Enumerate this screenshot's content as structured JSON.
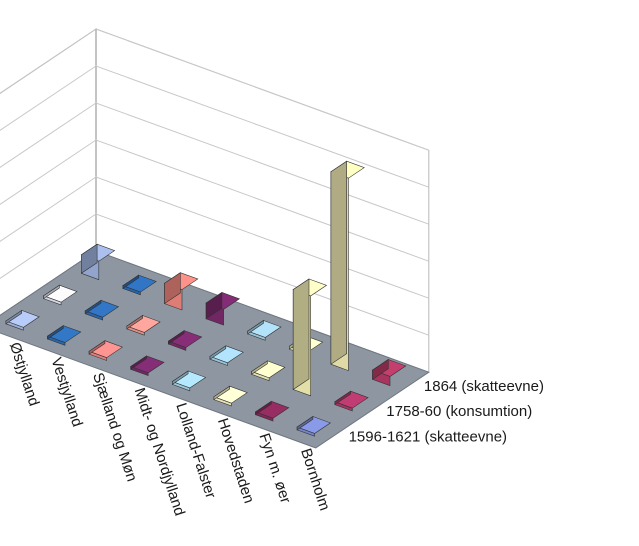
{
  "chart_data": {
    "type": "bar",
    "variant": "3d-column",
    "title": "",
    "xlabel": "",
    "ylabel": "",
    "ylim": [
      0,
      1200000
    ],
    "yticks": [
      0,
      200000,
      400000,
      600000,
      800000,
      1000000,
      1200000
    ],
    "ytick_labels": [
      "0",
      "200000",
      "400000",
      "600000",
      "800000",
      "1000000",
      "1200000"
    ],
    "grid": true,
    "legend": "series labels on depth axis, bottom-right",
    "categories": [
      "Østjylland",
      "Vestjylland",
      "Sjælland og Møn",
      "Midt- og Nordjylland",
      "Lolland-Falster",
      "Hovedstaden",
      "Fyn m. øer",
      "Bornholm"
    ],
    "series": [
      {
        "name": "1596-1621 (skatteevne)",
        "values": [
          15000,
          15000,
          15000,
          15000,
          15000,
          15000,
          15000,
          15000
        ],
        "colors": [
          "#a9bde6",
          "#2f6fb8",
          "#f08a88",
          "#7b2a6e",
          "#a8d8ec",
          "#fbf5c8",
          "#8c2a5c",
          "#7f8fd8"
        ]
      },
      {
        "name": "1758-60 (konsumtion)",
        "values": [
          15000,
          15000,
          15000,
          15000,
          15000,
          15000,
          540000,
          15000
        ],
        "colors": [
          "#e9e9f6",
          "#2e6eb8",
          "#f19a92",
          "#7e2b6f",
          "#a5d4ea",
          "#f8f4c0",
          "#f7f2b8",
          "#b2386a"
        ]
      },
      {
        "name": "1864 (skatteevne)",
        "values": [
          100000,
          15000,
          110000,
          85000,
          15000,
          15000,
          1040000,
          50000
        ],
        "colors": [
          "#9fb2dd",
          "#2d6db7",
          "#f0887f",
          "#7a2a6d",
          "#a5d2e8",
          "#f5f1c0",
          "#f4eeb4",
          "#b63a66"
        ]
      }
    ]
  }
}
